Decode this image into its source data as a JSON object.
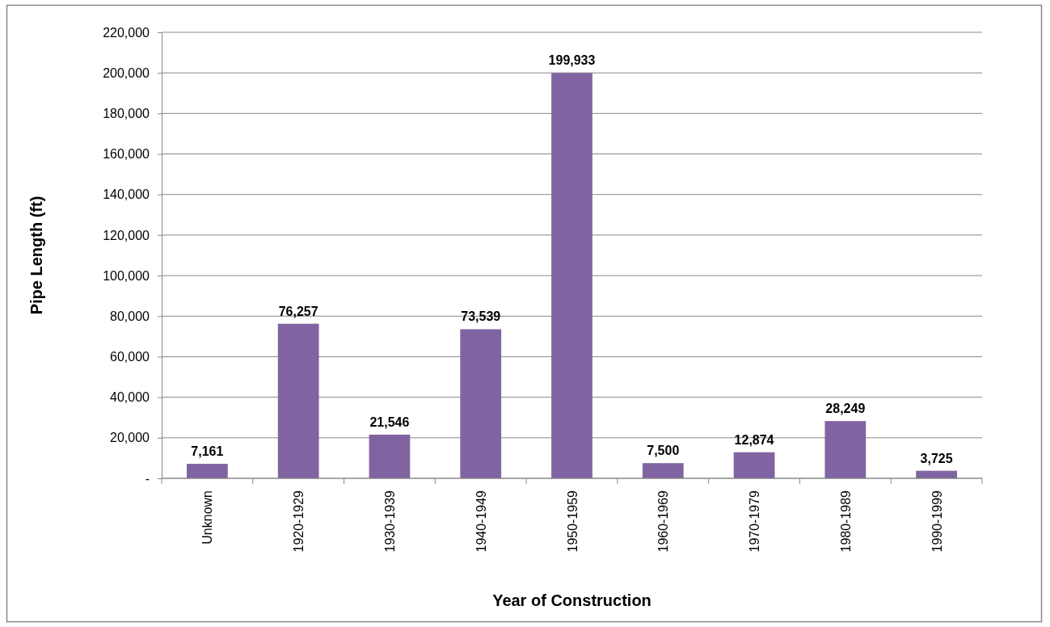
{
  "chart_data": {
    "type": "bar",
    "xlabel": "Year of Construction",
    "ylabel": "Pipe Length (ft)",
    "categories": [
      "Unknown",
      "1920-1929",
      "1930-1939",
      "1940-1949",
      "1950-1959",
      "1960-1969",
      "1970-1979",
      "1980-1989",
      "1990-1999"
    ],
    "values": [
      7161,
      76257,
      21546,
      73539,
      199933,
      7500,
      12874,
      28249,
      3725
    ],
    "color": "#8064a2",
    "value_labels": [
      "7,161",
      "76,257",
      "21,546",
      "73,539",
      "199,933",
      "7,500",
      "12,874",
      "28,249",
      "3,725"
    ],
    "ylim": [
      0,
      220000
    ],
    "yticks": [
      {
        "value": 0,
        "label": "-"
      },
      {
        "value": 20000,
        "label": "20,000"
      },
      {
        "value": 40000,
        "label": "40,000"
      },
      {
        "value": 60000,
        "label": "60,000"
      },
      {
        "value": 80000,
        "label": "80,000"
      },
      {
        "value": 100000,
        "label": "100,000"
      },
      {
        "value": 120000,
        "label": "120,000"
      },
      {
        "value": 140000,
        "label": "140,000"
      },
      {
        "value": 160000,
        "label": "160,000"
      },
      {
        "value": 180000,
        "label": "180,000"
      },
      {
        "value": 200000,
        "label": "200,000"
      },
      {
        "value": 220000,
        "label": "220,000"
      }
    ],
    "grid": "y"
  }
}
